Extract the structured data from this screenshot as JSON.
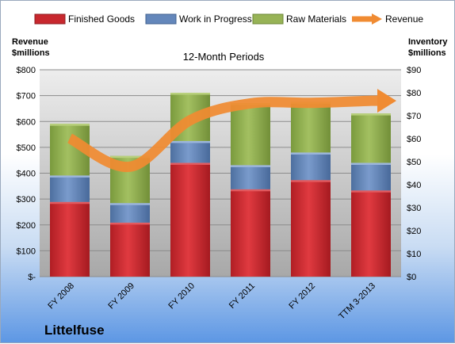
{
  "chart_data": {
    "type": "bar",
    "title": "12-Month Periods",
    "company": "Littelfuse",
    "left_axis_label": [
      "Revenue",
      "$millions"
    ],
    "right_axis_label": [
      "Inventory",
      "$millions"
    ],
    "left_ticks": [
      "$-",
      "$100",
      "$200",
      "$300",
      "$400",
      "$500",
      "$600",
      "$700",
      "$800"
    ],
    "right_ticks": [
      "$0",
      "$10",
      "$20",
      "$30",
      "$40",
      "$50",
      "$60",
      "$70",
      "$80",
      "$90"
    ],
    "left_ylim": [
      0,
      800
    ],
    "right_ylim": [
      0,
      90
    ],
    "categories": [
      "FY 2008",
      "FY 2009",
      "FY 2010",
      "FY 2011",
      "FY 2012",
      "TTM 3-2013"
    ],
    "stacked": true,
    "series": [
      {
        "name": "Finished Goods",
        "color": "#c0272d",
        "values": [
          32.5,
          23.5,
          49.5,
          38,
          42,
          37.5
        ]
      },
      {
        "name": "Work in Progress",
        "color": "#5a7fb4",
        "values": [
          11.5,
          8.5,
          9.5,
          10.5,
          12,
          12
        ]
      },
      {
        "name": "Raw Materials",
        "color": "#8fac4e",
        "values": [
          22.5,
          20.5,
          21,
          27,
          22,
          21.5
        ]
      }
    ],
    "line_series": {
      "name": "Revenue",
      "color": "#f08b32",
      "axis": "left",
      "values": [
        535,
        425,
        605,
        670,
        672,
        680
      ]
    },
    "grid": true,
    "legend_position": "top"
  }
}
